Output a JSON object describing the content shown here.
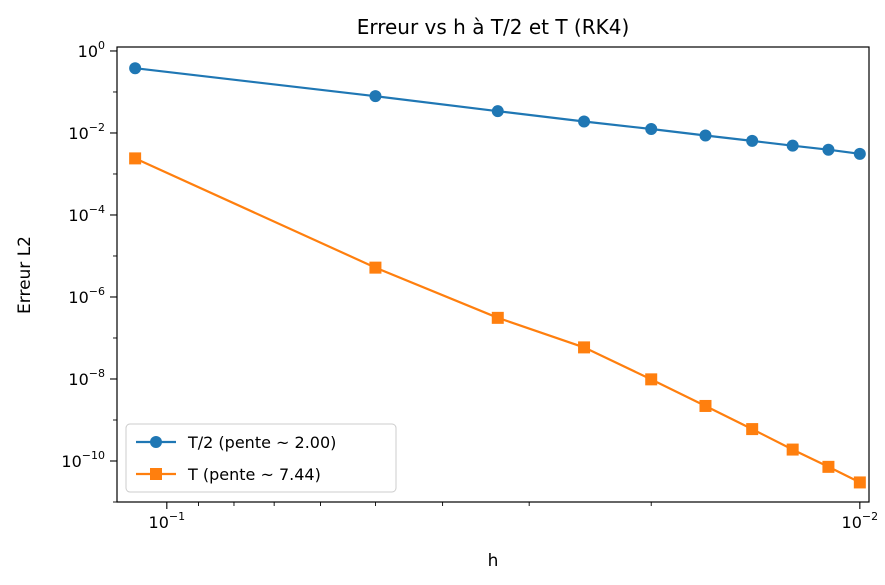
{
  "chart_data": {
    "type": "line",
    "title": "Erreur vs h à T/2 et T (RK4)",
    "xlabel": "h",
    "ylabel": "Erreur L2",
    "xscale": "log",
    "yscale": "log",
    "x_inverted": true,
    "xlim": [
      0.118,
      0.0097
    ],
    "ylim": [
      1e-11,
      1.25
    ],
    "x_ticks": [
      {
        "value": 0.1,
        "base": "10",
        "exp": "−1"
      },
      {
        "value": 0.01,
        "base": "10",
        "exp": "−2"
      }
    ],
    "y_ticks": [
      {
        "value": 1,
        "base": "10",
        "exp": "0"
      },
      {
        "value": 0.01,
        "base": "10",
        "exp": "−2"
      },
      {
        "value": 0.0001,
        "base": "10",
        "exp": "−4"
      },
      {
        "value": 1e-06,
        "base": "10",
        "exp": "−6"
      },
      {
        "value": 1e-08,
        "base": "10",
        "exp": "−8"
      },
      {
        "value": 1e-10,
        "base": "10",
        "exp": "−10"
      }
    ],
    "grid": false,
    "legend_position": "lower-left",
    "series": [
      {
        "name": "T/2 (pente ~ 2.00)",
        "color": "#1f77b4",
        "marker": "circle",
        "x": [
          0.1111,
          0.05,
          0.0333,
          0.025,
          0.02,
          0.0167,
          0.0143,
          0.0125,
          0.0111,
          0.01
        ],
        "y": [
          0.38,
          0.079,
          0.034,
          0.019,
          0.0125,
          0.0087,
          0.0064,
          0.0049,
          0.0039,
          0.0031
        ]
      },
      {
        "name": "T (pente ~ 7.44)",
        "color": "#ff7f0e",
        "marker": "square",
        "x": [
          0.1111,
          0.05,
          0.0333,
          0.025,
          0.02,
          0.0167,
          0.0143,
          0.0125,
          0.0111,
          0.01
        ],
        "y": [
          0.0024,
          5.2e-06,
          3.1e-07,
          5.9e-08,
          9.8e-09,
          2.2e-09,
          6e-10,
          1.9e-10,
          7.2e-11,
          3e-11
        ]
      }
    ]
  }
}
